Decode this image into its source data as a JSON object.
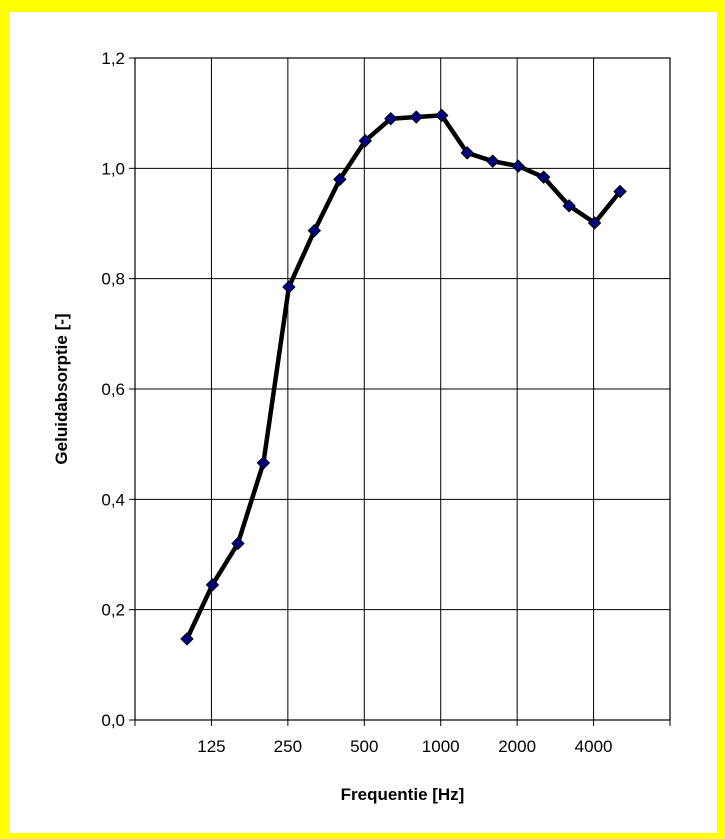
{
  "colors": {
    "frame_border": "#ffff00",
    "background": "#ffffff",
    "line": "#000000",
    "marker_fill": "#000080",
    "grid": "#000000"
  },
  "chart_data": {
    "type": "line",
    "title": "",
    "xlabel": "Frequentie [Hz]",
    "ylabel": "Geluidabsorptie [-]",
    "x_tick_labels": [
      "125",
      "250",
      "500",
      "1000",
      "2000",
      "4000"
    ],
    "y_tick_labels": [
      "0,0",
      "0,2",
      "0,4",
      "0,6",
      "0,8",
      "1,0",
      "1,2"
    ],
    "ylim": [
      0,
      1.2
    ],
    "grid": true,
    "legend": "none",
    "marker": "diamond",
    "series": [
      {
        "x": [
          "100",
          "125",
          "160",
          "200",
          "250",
          "315",
          "400",
          "500",
          "630",
          "800",
          "1000",
          "1250",
          "1600",
          "2000",
          "2500",
          "3150",
          "4000",
          "5000"
        ],
        "values": [
          0.147,
          0.245,
          0.32,
          0.466,
          0.785,
          0.887,
          0.98,
          1.05,
          1.09,
          1.093,
          1.096,
          1.028,
          1.013,
          1.004,
          0.984,
          0.932,
          0.901,
          0.958
        ]
      }
    ]
  }
}
